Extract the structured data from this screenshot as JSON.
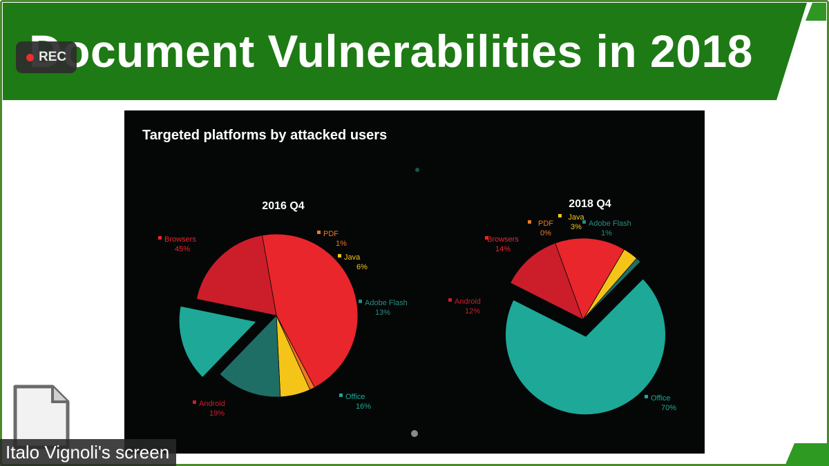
{
  "slide": {
    "title": "Document Vulnerabilities in 2018",
    "chart_heading": "Targeted platforms by attacked users"
  },
  "overlay": {
    "rec_label": "REC",
    "screen_share_label": "Italo Vignoli's screen"
  },
  "colors": {
    "band_green": "#1e7a14",
    "panel_black": "#050707",
    "browsers": "#e8262c",
    "android": "#cc1e2a",
    "pdf": "#f07820",
    "java": "#f5c418",
    "adobe_flash": "#1f6e66",
    "office": "#1ea898"
  },
  "chart_data": [
    {
      "type": "pie",
      "title": "2016 Q4",
      "slices": [
        {
          "key": "browsers",
          "label": "Browsers",
          "value_label": "45%",
          "value": 45
        },
        {
          "key": "pdf",
          "label": "PDF",
          "value_label": "1%",
          "value": 1
        },
        {
          "key": "java",
          "label": "Java",
          "value_label": "6%",
          "value": 6
        },
        {
          "key": "adobe_flash",
          "label": "Adobe Flash",
          "value_label": "13%",
          "value": 13
        },
        {
          "key": "office",
          "label": "Office",
          "value_label": "16%",
          "value": 16
        },
        {
          "key": "android",
          "label": "Android",
          "value_label": "19%",
          "value": 19
        }
      ],
      "exploded": "office"
    },
    {
      "type": "pie",
      "title": "2018 Q4",
      "slices": [
        {
          "key": "browsers",
          "label": "Browsers",
          "value_label": "14%",
          "value": 14
        },
        {
          "key": "pdf",
          "label": "PDF",
          "value_label": "0%",
          "value": 0
        },
        {
          "key": "java",
          "label": "Java",
          "value_label": "3%",
          "value": 3
        },
        {
          "key": "adobe_flash",
          "label": "Adobe Flash",
          "value_label": "1%",
          "value": 1
        },
        {
          "key": "office",
          "label": "Office",
          "value_label": "70%",
          "value": 70
        },
        {
          "key": "android",
          "label": "Android",
          "value_label": "12%",
          "value": 12
        }
      ],
      "exploded": "office"
    }
  ]
}
